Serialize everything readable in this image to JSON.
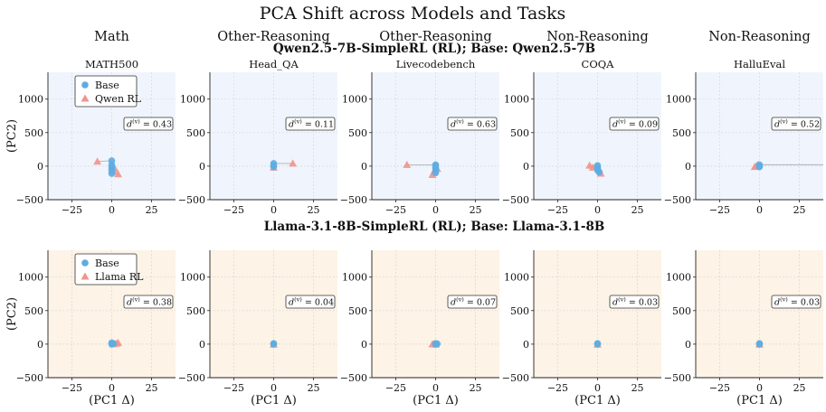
{
  "title": "PCA Shift across Models and Tasks",
  "columns": [
    {
      "category": "Math",
      "task": "MATH500"
    },
    {
      "category": "Other-Reasoning",
      "task": "Head_QA"
    },
    {
      "category": "Other-Reasoning",
      "task": "Livecodebench"
    },
    {
      "category": "Non-Reasoning",
      "task": "COQA"
    },
    {
      "category": "Non-Reasoning",
      "task": "HalluEval"
    }
  ],
  "rows": [
    {
      "subtitle": "Qwen2.5-7B-SimpleRL (RL); Base: Qwen2.5-7B",
      "legend": [
        "Base",
        "Qwen RL"
      ],
      "bg": "#f0f5fd"
    },
    {
      "subtitle": "Llama-3.1-8B-SimpleRL (RL); Base: Llama-3.1-8B",
      "legend": [
        "Base",
        "Llama RL"
      ],
      "bg": "#fdf3e6"
    }
  ],
  "axes": {
    "xlabel": "(PC1 Δ)",
    "ylabel": "(PC2)",
    "xlim": [
      -40,
      40
    ],
    "ylim": [
      -500,
      1400
    ],
    "xticks": [
      "−25",
      "0",
      "25"
    ],
    "xtick_values": [
      -25,
      0,
      25
    ],
    "yticks": [
      "−500",
      "0",
      "500",
      "1000"
    ],
    "ytick_values": [
      -500,
      0,
      500,
      1000
    ]
  },
  "colors": {
    "base": "#5dade2",
    "rl": "#f1948a",
    "line": "#b0b0b0",
    "grid": "#d8d8d8"
  },
  "chart_data": [
    {
      "type": "scatter",
      "row": 0,
      "task": "MATH500",
      "d_label": "= 0.43",
      "base": [
        [
          0,
          80
        ],
        [
          0,
          -20
        ],
        [
          0,
          -60
        ],
        [
          0,
          -110
        ],
        [
          0,
          20
        ]
      ],
      "rl": [
        [
          -9,
          70
        ],
        [
          1,
          -80
        ],
        [
          4,
          -120
        ],
        [
          2,
          -40
        ]
      ]
    },
    {
      "type": "scatter",
      "row": 0,
      "task": "Head_QA",
      "d_label": "= 0.11",
      "base": [
        [
          0,
          40
        ],
        [
          0,
          10
        ],
        [
          0,
          -10
        ]
      ],
      "rl": [
        [
          12,
          40
        ],
        [
          0,
          -20
        ]
      ]
    },
    {
      "type": "scatter",
      "row": 0,
      "task": "Livecodebench",
      "d_label": "= 0.63",
      "base": [
        [
          0,
          20
        ],
        [
          0,
          -20
        ],
        [
          0,
          -60
        ],
        [
          0,
          -100
        ],
        [
          0,
          5
        ]
      ],
      "rl": [
        [
          -18,
          20
        ],
        [
          -1,
          -80
        ],
        [
          -2,
          -130
        ],
        [
          1,
          -40
        ]
      ]
    },
    {
      "type": "scatter",
      "row": 0,
      "task": "COQA",
      "d_label": "= 0.09",
      "base": [
        [
          0,
          10
        ],
        [
          0,
          -30
        ],
        [
          0,
          -60
        ],
        [
          1,
          -90
        ],
        [
          0,
          -10
        ]
      ],
      "rl": [
        [
          -5,
          10
        ],
        [
          -3,
          -20
        ],
        [
          2,
          -110
        ],
        [
          1,
          -50
        ]
      ]
    },
    {
      "type": "scatter",
      "row": 0,
      "task": "HalluEval",
      "d_label": "= 0.52",
      "base": [
        [
          0,
          20
        ],
        [
          0,
          0
        ],
        [
          0,
          -10
        ]
      ],
      "rl": [
        [
          -2,
          0
        ],
        [
          -3,
          -10
        ],
        [
          -1,
          20
        ]
      ],
      "line_to": [
        40,
        20
      ]
    },
    {
      "type": "scatter",
      "row": 1,
      "task": "MATH500",
      "d_label": "= 0.38",
      "base": [
        [
          0,
          20
        ],
        [
          0,
          0
        ],
        [
          1,
          10
        ]
      ],
      "rl": [
        [
          3,
          10
        ],
        [
          4,
          20
        ],
        [
          1,
          0
        ]
      ]
    },
    {
      "type": "scatter",
      "row": 1,
      "task": "Head_QA",
      "d_label": "= 0.04",
      "base": [
        [
          0,
          10
        ],
        [
          0,
          0
        ]
      ],
      "rl": [
        [
          0,
          -5
        ]
      ]
    },
    {
      "type": "scatter",
      "row": 1,
      "task": "Livecodebench",
      "d_label": "= 0.07",
      "base": [
        [
          0,
          10
        ],
        [
          0,
          0
        ],
        [
          1,
          5
        ]
      ],
      "rl": [
        [
          -2,
          0
        ],
        [
          0,
          -5
        ]
      ]
    },
    {
      "type": "scatter",
      "row": 1,
      "task": "COQA",
      "d_label": "= 0.03",
      "base": [
        [
          0,
          10
        ],
        [
          0,
          0
        ]
      ],
      "rl": [
        [
          0,
          -5
        ]
      ]
    },
    {
      "type": "scatter",
      "row": 1,
      "task": "HalluEval",
      "d_label": "= 0.03",
      "base": [
        [
          0,
          10
        ],
        [
          0,
          0
        ]
      ],
      "rl": [
        [
          0,
          -5
        ]
      ]
    }
  ]
}
